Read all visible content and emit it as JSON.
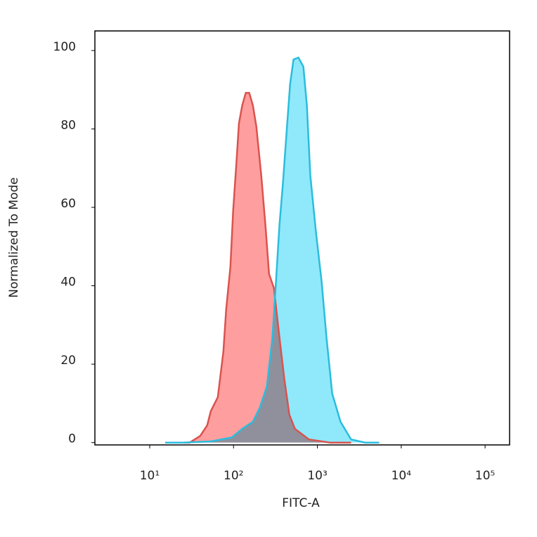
{
  "chart_data": {
    "type": "histogram-overlay",
    "xlabel": "FITC-A",
    "ylabel": "Normalized To Mode",
    "xscale": "log",
    "xlim": [
      2.22,
      196000
    ],
    "ylim": [
      -0.6,
      105
    ],
    "xticks": [
      {
        "value": 10,
        "label": "10¹"
      },
      {
        "value": 100,
        "label": "10²"
      },
      {
        "value": 1000,
        "label": "10³"
      },
      {
        "value": 10000,
        "label": "10⁴"
      },
      {
        "value": 100000,
        "label": "10⁵"
      }
    ],
    "yticks": [
      0,
      20,
      40,
      60,
      80,
      100
    ],
    "series": [
      {
        "color": "#d9534f",
        "fill": "#ff9e9e",
        "x": [
          20.4,
          30,
          40,
          48.5,
          53.5,
          64.9,
          75.7,
          81.7,
          91.7,
          99,
          107,
          116,
          127,
          140,
          154,
          170,
          187,
          214,
          240,
          265,
          303,
          353,
          404,
          463,
          540,
          794,
          1416,
          2525
        ],
        "values": [
          0,
          0,
          1.7,
          4.4,
          8.0,
          11.6,
          23.2,
          34.0,
          44.8,
          59.1,
          69.9,
          81.5,
          86.0,
          89.2,
          89.2,
          86.0,
          80.6,
          68.1,
          55.5,
          43.0,
          39.4,
          26.8,
          16.1,
          7.1,
          3.5,
          0.8,
          0,
          0
        ]
      },
      {
        "color": "#2bbcdd",
        "fill": "#8fe9fb",
        "x": [
          15.3,
          24.7,
          53.5,
          95.3,
          127,
          170,
          206,
          250,
          291,
          321,
          353,
          389,
          428,
          472,
          519,
          594,
          680,
          749,
          824,
          962,
          1122,
          1284,
          1500,
          1890,
          2525,
          3710,
          5450
        ],
        "values": [
          0,
          0,
          0.3,
          1.3,
          3.5,
          5.3,
          8.9,
          14.3,
          26.8,
          41.2,
          55.5,
          66.3,
          78.8,
          91.4,
          97.7,
          98.2,
          95.9,
          86.0,
          68.1,
          53.7,
          41.2,
          26.8,
          12.5,
          5.3,
          0.8,
          0,
          0
        ]
      }
    ]
  }
}
